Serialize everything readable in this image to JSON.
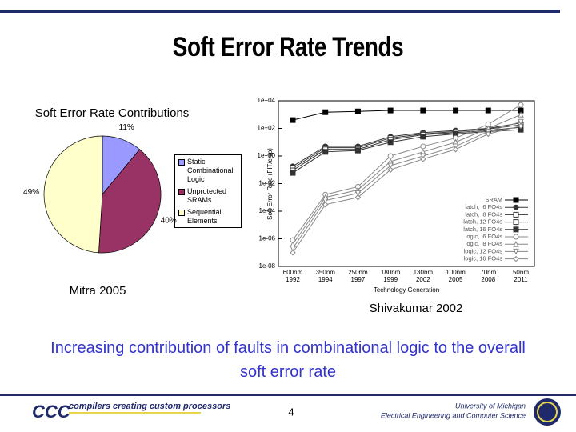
{
  "slide": {
    "title": "Soft Error Rate Trends",
    "message": "Increasing contribution of faults in combinational logic to the overall soft error rate",
    "logo": "CCC",
    "tagline": "compilers creating custom processors",
    "page_number": "4",
    "institution": "University of Michigan",
    "department": "Electrical Engineering and Computer Science"
  },
  "chart_data": [
    {
      "type": "pie",
      "title": "Soft Error Rate Contributions",
      "caption": "Mitra 2005",
      "categories": [
        "Static Combinational Logic",
        "Unprotected SRAMs",
        "Sequential Elements"
      ],
      "values": [
        11,
        40,
        49
      ],
      "value_labels": [
        "11%",
        "40%",
        "49%"
      ],
      "colors": [
        "#9999ff",
        "#993366",
        "#ffffcc"
      ],
      "legend": "right"
    },
    {
      "type": "line",
      "caption": "Shivakumar 2002",
      "xlabel": "Technology Generation",
      "ylabel": "Soft Error Rate (FIT/chip)",
      "categories": [
        "600nm\n1992",
        "350nm\n1994",
        "250nm\n1997",
        "180nm\n1999",
        "130nm\n2002",
        "100nm\n2005",
        "70nm\n2008",
        "50nm\n2011"
      ],
      "log_scale": true,
      "ylim": [
        1e-08,
        10000
      ],
      "yticks": [
        {
          "value": 1e-08,
          "label": "1e-08"
        },
        {
          "value": 1e-06,
          "label": "1e-06"
        },
        {
          "value": 0.0001,
          "label": "1e-04"
        },
        {
          "value": 0.01,
          "label": "1e-02"
        },
        {
          "value": 1,
          "label": "1e+00"
        },
        {
          "value": 100,
          "label": "1e+02"
        },
        {
          "value": 10000,
          "label": "1e+04"
        }
      ],
      "legend": "lower right",
      "series": [
        {
          "name": "SRAM",
          "color": "#000000",
          "marker": "square-filled",
          "values": [
            400,
            1500,
            1700,
            2000,
            2000,
            2000,
            2000,
            2000
          ]
        },
        {
          "name": "latch,  6 FO4s",
          "color": "#333333",
          "marker": "circle-filled",
          "values": [
            0.18,
            5,
            5,
            25,
            50,
            70,
            100,
            250
          ]
        },
        {
          "name": "latch,  8 FO4s",
          "color": "#333333",
          "marker": "square-half",
          "values": [
            0.13,
            4,
            4,
            20,
            40,
            60,
            90,
            180
          ]
        },
        {
          "name": "latch, 12 FO4s",
          "color": "#333333",
          "marker": "square-dot",
          "values": [
            0.09,
            3,
            3,
            15,
            35,
            50,
            70,
            120
          ]
        },
        {
          "name": "latch, 16 FO4s",
          "color": "#333333",
          "marker": "square-filled",
          "values": [
            0.06,
            2,
            2.5,
            10,
            25,
            40,
            60,
            80
          ]
        },
        {
          "name": "logic,  6 FO4s",
          "color": "#888888",
          "marker": "circle",
          "values": [
            8e-07,
            0.0016,
            0.006,
            1,
            5,
            20,
            200,
            5000
          ]
        },
        {
          "name": "logic,  8 FO4s",
          "color": "#888888",
          "marker": "triangle",
          "values": [
            4e-07,
            0.001,
            0.0035,
            0.4,
            2,
            10,
            100,
            1000
          ]
        },
        {
          "name": "logic, 12 FO4s",
          "color": "#888888",
          "marker": "triangle-down",
          "values": [
            2e-07,
            0.0006,
            0.002,
            0.2,
            1,
            5,
            60,
            300
          ]
        },
        {
          "name": "logic, 16 FO4s",
          "color": "#888888",
          "marker": "diamond",
          "values": [
            1e-07,
            0.0003,
            0.001,
            0.1,
            0.6,
            3,
            40,
            150
          ]
        }
      ]
    }
  ]
}
